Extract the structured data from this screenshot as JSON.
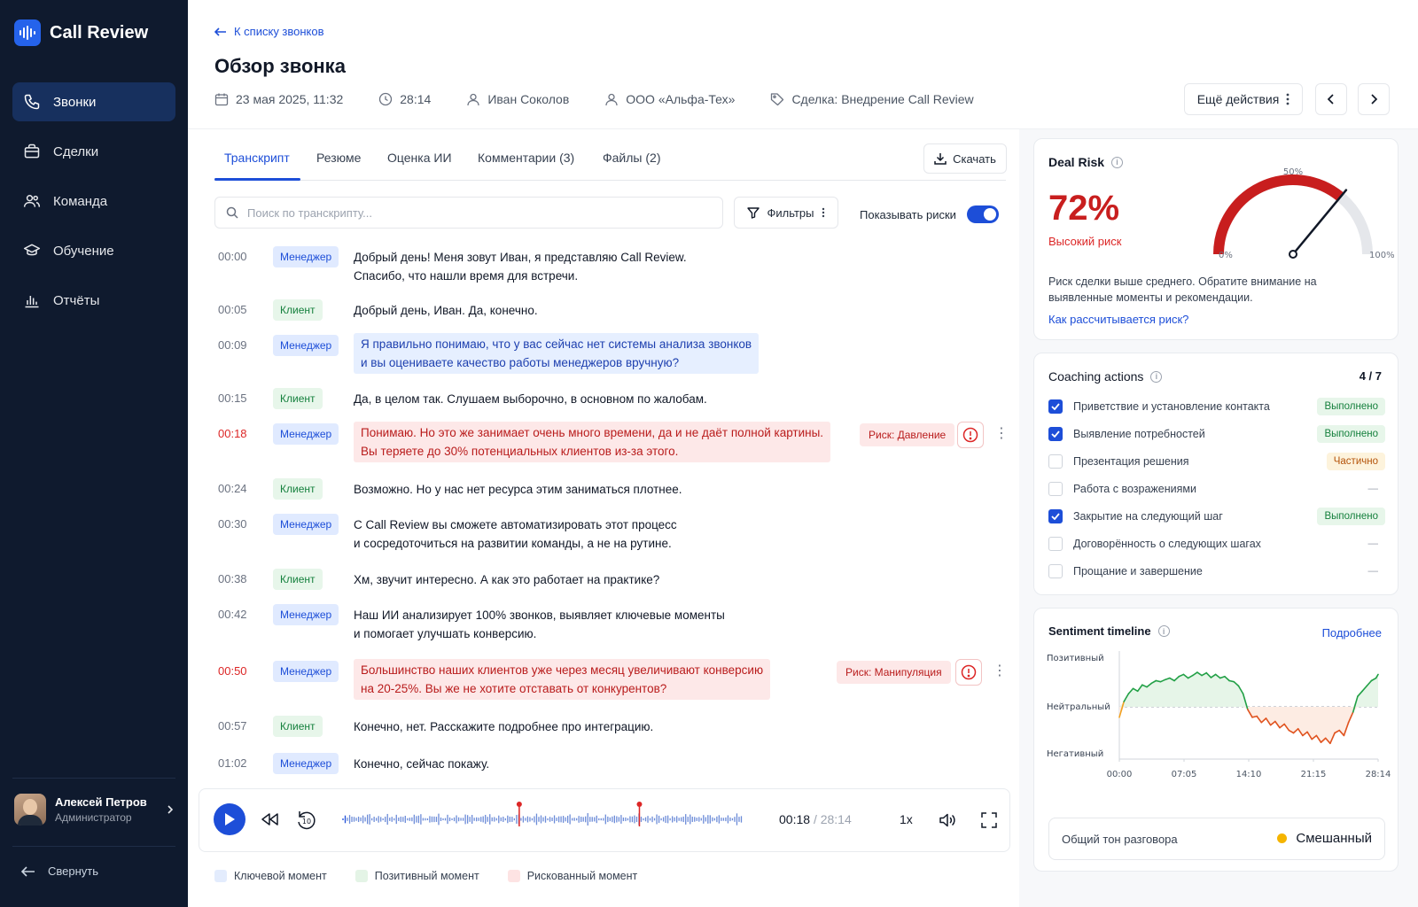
{
  "app": {
    "title": "Call Review"
  },
  "sidebar": {
    "items": [
      {
        "label": "Звонки",
        "icon": "phone-icon",
        "active": true
      },
      {
        "label": "Сделки",
        "icon": "briefcase-icon"
      },
      {
        "label": "Команда",
        "icon": "users-icon"
      },
      {
        "label": "Обучение",
        "icon": "graduation-cap-icon"
      },
      {
        "label": "Отчёты",
        "icon": "bar-chart-icon"
      }
    ],
    "user": {
      "name": "Алексей Петров",
      "role": "Администратор"
    },
    "collapse_label": "Свернуть"
  },
  "header": {
    "back_label": "К списку звонков",
    "title": "Обзор звонка",
    "meta": {
      "date": "23 мая 2025, 11:32",
      "duration": "28:14",
      "manager": "Иван Соколов",
      "company": "ООО «Альфа-Тех»",
      "deal": "Сделка: Внедрение Call Review"
    },
    "more_actions_label": "Ещё действия"
  },
  "tabs": [
    {
      "label": "Транскрипт",
      "active": true
    },
    {
      "label": "Резюме"
    },
    {
      "label": "Оценка ИИ"
    },
    {
      "label": "Комментарии (3)"
    },
    {
      "label": "Файлы (2)"
    }
  ],
  "download_label": "Скачать",
  "search": {
    "placeholder": "Поиск по транскрипту..."
  },
  "filters_label": "Фильтры",
  "show_risks_label": "Показывать риски",
  "transcript": [
    {
      "time": "00:00",
      "speaker": "Менеджер",
      "lines": [
        "Добрый день! Меня зовут Иван, я представляю Call Review.",
        "Спасибо, что нашли время для встречи."
      ]
    },
    {
      "time": "00:05",
      "speaker": "Клиент",
      "lines": [
        "Добрый день, Иван. Да, конечно."
      ]
    },
    {
      "time": "00:09",
      "speaker": "Менеджер",
      "lines": [
        "Я правильно понимаю, что у вас сейчас нет системы анализа звонков",
        "и вы оцениваете качество работы менеджеров вручную?"
      ],
      "highlight": "key"
    },
    {
      "time": "00:15",
      "speaker": "Клиент",
      "lines": [
        "Да, в целом так. Слушаем выборочно, в основном по жалобам."
      ]
    },
    {
      "time": "00:18",
      "speaker": "Менеджер",
      "lines": [
        "Понимаю. Но это же занимает очень много времени, да и не даёт полной картины.",
        "Вы теряете до 30% потенциальных клиентов из-за этого."
      ],
      "highlight": "risk",
      "risk_label": "Риск: Давление"
    },
    {
      "time": "00:24",
      "speaker": "Клиент",
      "lines": [
        "Возможно. Но у нас нет ресурса этим заниматься плотнее."
      ]
    },
    {
      "time": "00:30",
      "speaker": "Менеджер",
      "lines": [
        "С Call Review вы сможете автоматизировать этот процесс",
        "и сосредоточиться на развитии команды, а не на рутине."
      ]
    },
    {
      "time": "00:38",
      "speaker": "Клиент",
      "lines": [
        "Хм, звучит интересно. А как это работает на практике?"
      ]
    },
    {
      "time": "00:42",
      "speaker": "Менеджер",
      "lines": [
        "Наш ИИ анализирует 100% звонков, выявляет ключевые моменты",
        "и помогает улучшать конверсию."
      ]
    },
    {
      "time": "00:50",
      "speaker": "Менеджер",
      "lines": [
        "Большинство наших клиентов уже через месяц увеличивают конверсию",
        "на 20-25%. Вы же не хотите отставать от конкурентов?"
      ],
      "highlight": "risk",
      "risk_label": "Риск: Манипуляция"
    },
    {
      "time": "00:57",
      "speaker": "Клиент",
      "lines": [
        "Конечно, нет. Расскажите подробнее про интеграцию."
      ]
    },
    {
      "time": "01:02",
      "speaker": "Менеджер",
      "lines": [
        "Конечно, сейчас покажу."
      ]
    }
  ],
  "player": {
    "current": "00:18",
    "separator": "/",
    "duration": "28:14",
    "speed": "1x",
    "skip_back_label": "10",
    "progress": 0.011
  },
  "legend": [
    {
      "label": "Ключевой момент",
      "color": "#e3ecfd"
    },
    {
      "label": "Позитивный момент",
      "color": "#e4f4e6"
    },
    {
      "label": "Рискованный момент",
      "color": "#fde3e3"
    }
  ],
  "deal_risk": {
    "title": "Deal Risk",
    "value": "72%",
    "level": "Высокий риск",
    "gauge_value": 72,
    "gauge_min": "0%",
    "gauge_mid": "50%",
    "gauge_max": "100%",
    "description": "Риск сделки выше среднего. Обратите внимание на выявленные моменты и рекомендации.",
    "link": "Как рассчитывается риск?"
  },
  "coaching": {
    "title": "Coaching actions",
    "count": "4 / 7",
    "items": [
      {
        "label": "Приветствие и установление контакта",
        "checked": true,
        "status": "Выполнено",
        "type": "done"
      },
      {
        "label": "Выявление потребностей",
        "checked": true,
        "status": "Выполнено",
        "type": "done"
      },
      {
        "label": "Презентация решения",
        "checked": false,
        "status": "Частично",
        "type": "partial"
      },
      {
        "label": "Работа с возражениями",
        "checked": false,
        "status": "—",
        "type": "none"
      },
      {
        "label": "Закрытие на следующий шаг",
        "checked": true,
        "status": "Выполнено",
        "type": "done"
      },
      {
        "label": "Договорённость о следующих шагах",
        "checked": false,
        "status": "—",
        "type": "none"
      },
      {
        "label": "Прощание и завершение",
        "checked": false,
        "status": "—",
        "type": "none"
      }
    ]
  },
  "sentiment": {
    "title": "Sentiment timeline",
    "more_label": "Подробнее",
    "tone_label": "Общий тон разговора",
    "tone_value": "Смешанный",
    "colors": {
      "positive": "#22a046",
      "negative": "#e0531f",
      "neutral_start": "#f0a020"
    }
  },
  "chart_data": {
    "type": "line",
    "title": "Sentiment timeline",
    "y_categories": [
      "Негативный",
      "Нейтральный",
      "Позитивный"
    ],
    "ylim": [
      -1,
      1
    ],
    "x_ticks": [
      "00:00",
      "07:05",
      "14:10",
      "21:15",
      "28:14"
    ],
    "x_minutes": [
      0,
      0.5,
      1,
      1.5,
      2,
      2.5,
      3,
      3.5,
      4,
      4.5,
      5,
      5.5,
      6,
      6.5,
      7,
      7.5,
      8,
      8.5,
      9,
      9.5,
      10,
      10.5,
      11,
      11.5,
      12,
      12.5,
      13,
      13.5,
      14,
      14.5,
      15,
      15.5,
      16,
      16.5,
      17,
      17.5,
      18,
      18.5,
      19,
      19.5,
      20,
      20.5,
      21,
      21.5,
      22,
      22.5,
      23,
      23.5,
      24,
      24.5,
      25,
      25.5,
      26,
      26.5,
      27,
      27.5,
      28,
      28.23
    ],
    "values": [
      -0.2,
      0.1,
      0.25,
      0.35,
      0.3,
      0.42,
      0.38,
      0.45,
      0.5,
      0.48,
      0.52,
      0.55,
      0.5,
      0.58,
      0.62,
      0.55,
      0.6,
      0.66,
      0.6,
      0.65,
      0.56,
      0.62,
      0.55,
      0.58,
      0.5,
      0.48,
      0.4,
      0.25,
      -0.05,
      -0.2,
      -0.18,
      -0.3,
      -0.22,
      -0.35,
      -0.28,
      -0.4,
      -0.33,
      -0.45,
      -0.5,
      -0.42,
      -0.55,
      -0.48,
      -0.62,
      -0.55,
      -0.68,
      -0.6,
      -0.7,
      -0.5,
      -0.45,
      -0.55,
      -0.3,
      -0.1,
      0.2,
      0.3,
      0.4,
      0.5,
      0.55,
      0.62
    ]
  }
}
